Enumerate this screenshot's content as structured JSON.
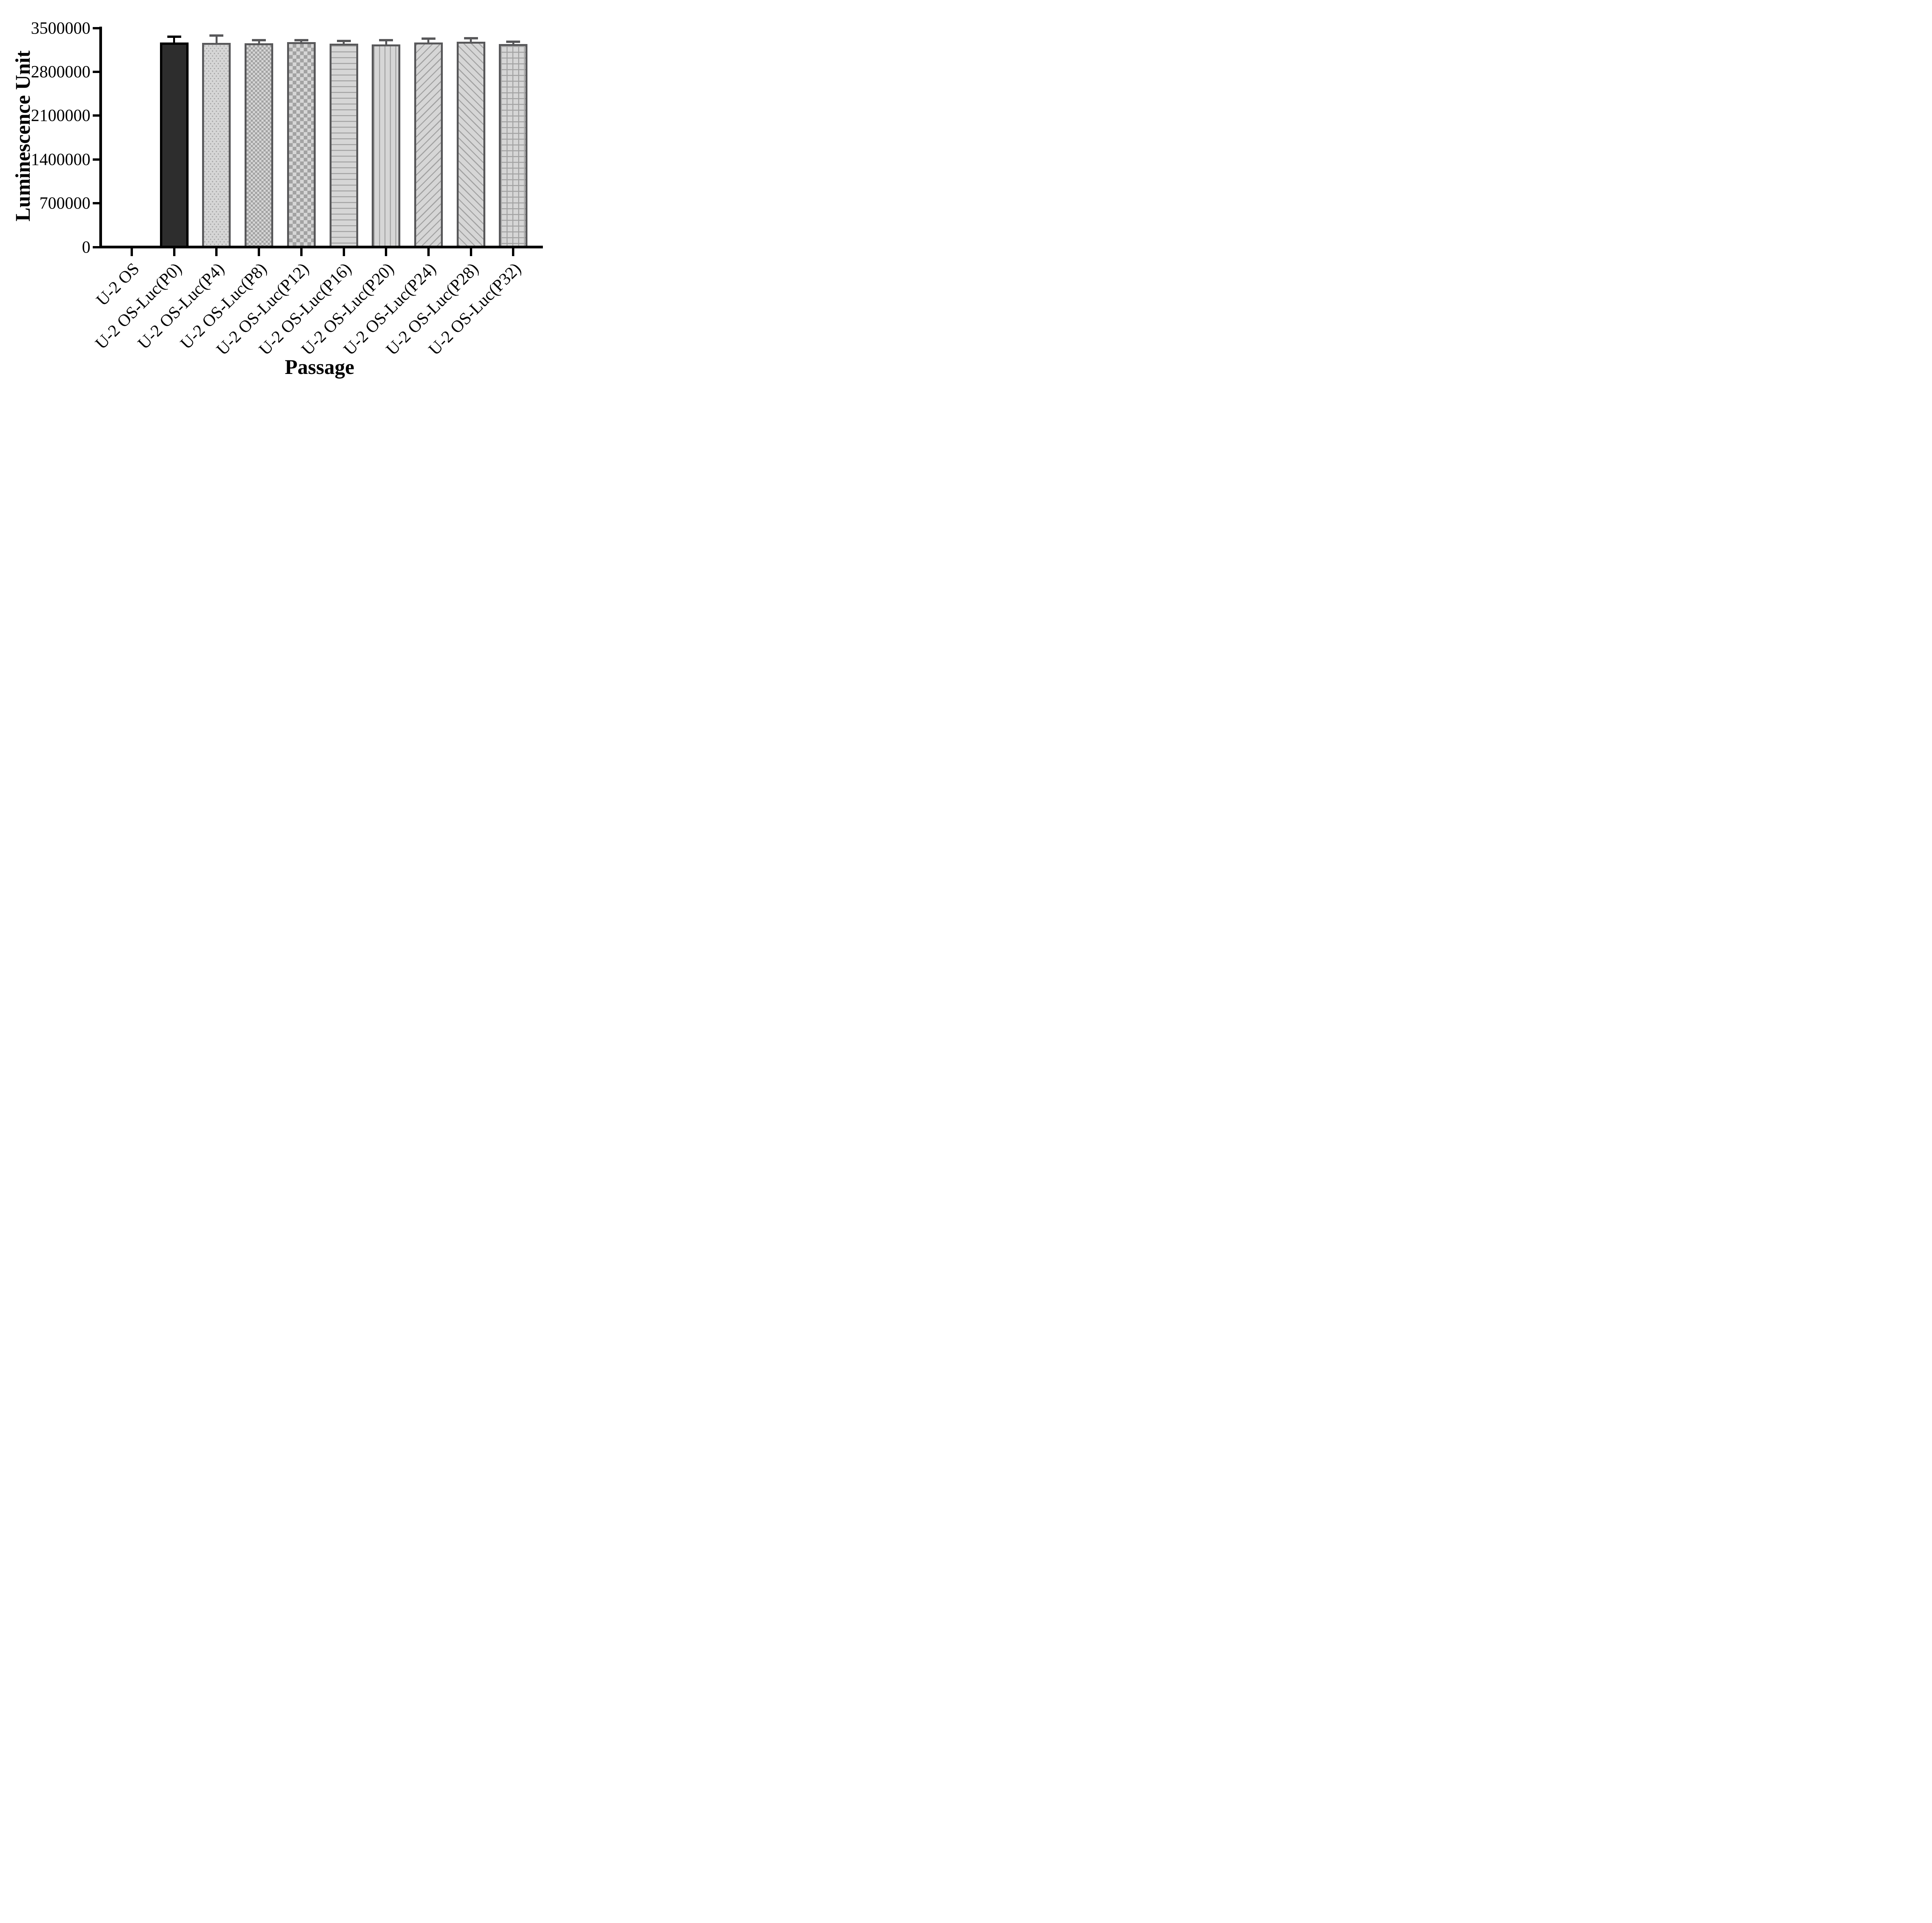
{
  "chart_data": {
    "type": "bar",
    "title": "",
    "xlabel": "Passage",
    "ylabel": "Luminescence Unit",
    "ylim": [
      0,
      3500000
    ],
    "yticks": [
      0,
      700000,
      1400000,
      2100000,
      2800000,
      3500000
    ],
    "ytick_labels": [
      "0",
      "700000",
      "1400000",
      "2100000",
      "2800000",
      "3500000"
    ],
    "grid": false,
    "legend": "none",
    "categories": [
      "U-2 OS",
      "U-2 OS-Luc(P0)",
      "U-2 OS-Luc(P4)",
      "U-2 OS-Luc(P8)",
      "U-2 OS-Luc(P12)",
      "U-2 OS-Luc(P16)",
      "U-2 OS-Luc(P20)",
      "U-2 OS-Luc(P24)",
      "U-2 OS-Luc(P28)",
      "U-2 OS-Luc(P32)"
    ],
    "values": [
      0,
      3245000,
      3240000,
      3235000,
      3255000,
      3230000,
      3215000,
      3250000,
      3260000,
      3225000
    ],
    "errors": [
      0,
      115000,
      135000,
      65000,
      45000,
      60000,
      85000,
      80000,
      75000,
      50000
    ],
    "patterns": [
      "none",
      "solid",
      "dots",
      "checker-small",
      "checker-large",
      "hlines",
      "vlines",
      "diag-up",
      "diag-down",
      "grid"
    ]
  },
  "style": {
    "axis_color": "#000000",
    "solid_bar_fill": "#2d2d2d",
    "solid_bar_border": "#000000",
    "patterned_bar_fill": "#d6d6d6",
    "pattern_color": "#a2a2a2",
    "patterned_bar_border": "#58585a"
  }
}
